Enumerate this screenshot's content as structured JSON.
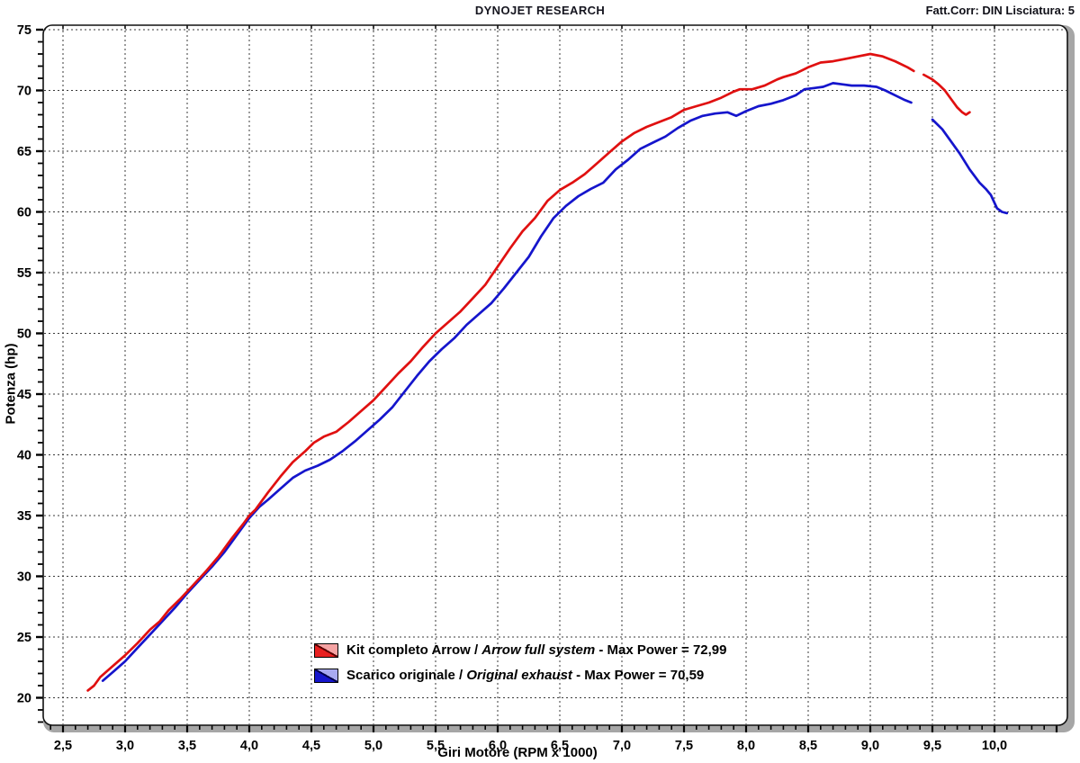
{
  "header": {
    "title": "DYNOJET RESEARCH",
    "correction_info": "Fatt.Corr: DIN  Lisciatura: 5"
  },
  "chart_data": {
    "type": "line",
    "xlabel": "Giri Motore (RPM x 1000)",
    "ylabel": "Potenza (hp)",
    "xlim": [
      2.34,
      10.58
    ],
    "ylim": [
      17.7,
      75.4
    ],
    "grid": "dashed",
    "grid_color": "#3a3a3a",
    "frame_color": "#111111",
    "bevel_color": "#a6a6a6",
    "x_major_ticks": [
      2.5,
      3.0,
      3.5,
      4.0,
      4.5,
      5.0,
      5.5,
      6.0,
      6.5,
      7.0,
      7.5,
      8.0,
      8.5,
      9.0,
      9.5,
      10.0
    ],
    "x_tick_labels": [
      "2,5",
      "3,0",
      "3,5",
      "4,0",
      "4,5",
      "5,0",
      "5,5",
      "6,0",
      "6,5",
      "7,0",
      "7,5",
      "8,0",
      "8,5",
      "9,0",
      "9,5",
      "10,0"
    ],
    "x_minor_step": 0.1,
    "y_major_ticks": [
      20,
      25,
      30,
      35,
      40,
      45,
      50,
      55,
      60,
      65,
      70,
      75
    ],
    "y_tick_labels": [
      "20",
      "25",
      "30",
      "35",
      "40",
      "45",
      "50",
      "55",
      "60",
      "65",
      "70",
      "75"
    ],
    "y_minor_step": 1,
    "legend_position": "bottom-center-inside",
    "series": [
      {
        "id": "arrow-kit",
        "label_pre": "Kit completo Arrow / ",
        "label_italic": "Arrow full system",
        "label_post": " - Max Power = 72,99",
        "max_power": "72,99",
        "color": "#e01010",
        "swatch_solid": "#e82020",
        "swatch_light": "#f5a3a3",
        "swatch_diag": "#5a0000",
        "segments": [
          [
            [
              2.7,
              20.6
            ],
            [
              2.75,
              21.0
            ],
            [
              2.8,
              21.7
            ],
            [
              2.9,
              22.6
            ],
            [
              3.0,
              23.5
            ],
            [
              3.1,
              24.5
            ],
            [
              3.2,
              25.6
            ],
            [
              3.28,
              26.3
            ],
            [
              3.35,
              27.2
            ],
            [
              3.45,
              28.2
            ],
            [
              3.55,
              29.3
            ],
            [
              3.65,
              30.4
            ],
            [
              3.75,
              31.6
            ],
            [
              3.85,
              33.0
            ],
            [
              3.95,
              34.3
            ],
            [
              4.0,
              35.0
            ],
            [
              4.05,
              35.5
            ],
            [
              4.15,
              36.9
            ],
            [
              4.25,
              38.2
            ],
            [
              4.35,
              39.4
            ],
            [
              4.45,
              40.3
            ],
            [
              4.52,
              41.0
            ],
            [
              4.6,
              41.5
            ],
            [
              4.7,
              41.9
            ],
            [
              4.8,
              42.7
            ],
            [
              4.9,
              43.6
            ],
            [
              5.0,
              44.5
            ],
            [
              5.1,
              45.6
            ],
            [
              5.2,
              46.7
            ],
            [
              5.3,
              47.7
            ],
            [
              5.4,
              48.9
            ],
            [
              5.5,
              50.0
            ],
            [
              5.6,
              50.9
            ],
            [
              5.7,
              51.8
            ],
            [
              5.8,
              52.9
            ],
            [
              5.9,
              54.0
            ],
            [
              6.0,
              55.5
            ],
            [
              6.1,
              57.0
            ],
            [
              6.2,
              58.4
            ],
            [
              6.3,
              59.5
            ],
            [
              6.4,
              60.9
            ],
            [
              6.5,
              61.8
            ],
            [
              6.6,
              62.4
            ],
            [
              6.7,
              63.1
            ],
            [
              6.8,
              64.0
            ],
            [
              6.9,
              64.9
            ],
            [
              7.0,
              65.8
            ],
            [
              7.1,
              66.5
            ],
            [
              7.2,
              67.0
            ],
            [
              7.3,
              67.4
            ],
            [
              7.4,
              67.8
            ],
            [
              7.5,
              68.4
            ],
            [
              7.6,
              68.7
            ],
            [
              7.7,
              69.0
            ],
            [
              7.8,
              69.4
            ],
            [
              7.9,
              69.9
            ],
            [
              7.95,
              70.1
            ],
            [
              8.05,
              70.1
            ],
            [
              8.15,
              70.4
            ],
            [
              8.25,
              70.9
            ],
            [
              8.3,
              71.1
            ],
            [
              8.4,
              71.4
            ],
            [
              8.5,
              71.9
            ],
            [
              8.6,
              72.3
            ],
            [
              8.7,
              72.4
            ],
            [
              8.8,
              72.6
            ],
            [
              8.9,
              72.8
            ],
            [
              9.0,
              73.0
            ],
            [
              9.1,
              72.8
            ],
            [
              9.2,
              72.4
            ],
            [
              9.3,
              71.9
            ],
            [
              9.35,
              71.6
            ]
          ],
          [
            [
              9.43,
              71.3
            ],
            [
              9.5,
              70.9
            ],
            [
              9.55,
              70.5
            ],
            [
              9.6,
              70.0
            ],
            [
              9.65,
              69.3
            ],
            [
              9.7,
              68.6
            ],
            [
              9.74,
              68.2
            ],
            [
              9.77,
              68.0
            ],
            [
              9.8,
              68.2
            ]
          ]
        ]
      },
      {
        "id": "original-exhaust",
        "label_pre": "Scarico originale / ",
        "label_italic": "Original exhaust",
        "label_post": " - Max Power = 70,59",
        "max_power": "70,59",
        "color": "#1515cc",
        "swatch_solid": "#1616cc",
        "swatch_light": "#a8aaf0",
        "swatch_diag": "#00004a",
        "segments": [
          [
            [
              2.82,
              21.4
            ],
            [
              2.9,
              22.1
            ],
            [
              3.0,
              23.0
            ],
            [
              3.1,
              24.1
            ],
            [
              3.2,
              25.2
            ],
            [
              3.3,
              26.3
            ],
            [
              3.4,
              27.4
            ],
            [
              3.5,
              28.6
            ],
            [
              3.6,
              29.7
            ],
            [
              3.7,
              30.8
            ],
            [
              3.8,
              32.0
            ],
            [
              3.9,
              33.4
            ],
            [
              4.0,
              34.8
            ],
            [
              4.08,
              35.7
            ],
            [
              4.15,
              36.3
            ],
            [
              4.25,
              37.2
            ],
            [
              4.35,
              38.1
            ],
            [
              4.45,
              38.7
            ],
            [
              4.55,
              39.1
            ],
            [
              4.65,
              39.6
            ],
            [
              4.75,
              40.3
            ],
            [
              4.85,
              41.1
            ],
            [
              4.95,
              42.0
            ],
            [
              5.05,
              42.9
            ],
            [
              5.15,
              43.9
            ],
            [
              5.25,
              45.2
            ],
            [
              5.35,
              46.5
            ],
            [
              5.45,
              47.7
            ],
            [
              5.55,
              48.7
            ],
            [
              5.65,
              49.6
            ],
            [
              5.75,
              50.7
            ],
            [
              5.85,
              51.6
            ],
            [
              5.95,
              52.5
            ],
            [
              6.05,
              53.7
            ],
            [
              6.15,
              55.0
            ],
            [
              6.25,
              56.3
            ],
            [
              6.35,
              58.0
            ],
            [
              6.45,
              59.5
            ],
            [
              6.55,
              60.5
            ],
            [
              6.65,
              61.3
            ],
            [
              6.75,
              61.9
            ],
            [
              6.85,
              62.4
            ],
            [
              6.95,
              63.5
            ],
            [
              7.05,
              64.3
            ],
            [
              7.15,
              65.2
            ],
            [
              7.25,
              65.7
            ],
            [
              7.35,
              66.2
            ],
            [
              7.45,
              66.9
            ],
            [
              7.55,
              67.5
            ],
            [
              7.65,
              67.9
            ],
            [
              7.75,
              68.1
            ],
            [
              7.85,
              68.2
            ],
            [
              7.92,
              67.9
            ],
            [
              8.0,
              68.3
            ],
            [
              8.1,
              68.7
            ],
            [
              8.2,
              68.9
            ],
            [
              8.3,
              69.2
            ],
            [
              8.4,
              69.6
            ],
            [
              8.47,
              70.1
            ],
            [
              8.55,
              70.2
            ],
            [
              8.62,
              70.3
            ],
            [
              8.7,
              70.6
            ],
            [
              8.78,
              70.5
            ],
            [
              8.85,
              70.4
            ],
            [
              8.95,
              70.4
            ],
            [
              9.05,
              70.3
            ],
            [
              9.12,
              70.0
            ],
            [
              9.2,
              69.6
            ],
            [
              9.28,
              69.2
            ],
            [
              9.33,
              69.0
            ]
          ],
          [
            [
              9.5,
              67.6
            ],
            [
              9.58,
              66.8
            ],
            [
              9.65,
              65.8
            ],
            [
              9.72,
              64.8
            ],
            [
              9.8,
              63.5
            ],
            [
              9.88,
              62.4
            ],
            [
              9.93,
              61.9
            ],
            [
              9.97,
              61.4
            ],
            [
              10.02,
              60.3
            ],
            [
              10.06,
              60.0
            ],
            [
              10.1,
              59.9
            ]
          ]
        ]
      }
    ]
  }
}
